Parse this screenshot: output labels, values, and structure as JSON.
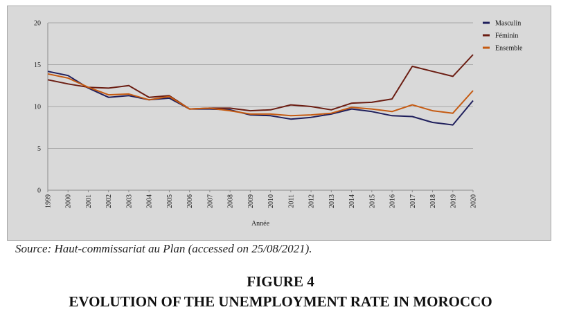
{
  "chart_data": {
    "type": "line",
    "xlabel": "Année",
    "ylabel": "",
    "ylim": [
      0,
      20
    ],
    "yticks": [
      0,
      5,
      10,
      15,
      20
    ],
    "grid": true,
    "legend_position": "top-right",
    "categories": [
      "1999",
      "2000",
      "2001",
      "2002",
      "2003",
      "2004",
      "2005",
      "2006",
      "2007",
      "2008",
      "2009",
      "2010",
      "2011",
      "2012",
      "2013",
      "2014",
      "2015",
      "2016",
      "2017",
      "2018",
      "2019",
      "2020"
    ],
    "series": [
      {
        "name": "Masculin",
        "color": "#1f1f5c",
        "values": [
          14.2,
          13.7,
          12.2,
          11.1,
          11.3,
          10.8,
          11.0,
          9.7,
          9.7,
          9.6,
          9.0,
          8.9,
          8.5,
          8.7,
          9.1,
          9.7,
          9.4,
          8.9,
          8.8,
          8.1,
          7.8,
          10.7
        ]
      },
      {
        "name": "Féminin",
        "color": "#6b1d12",
        "values": [
          13.2,
          12.7,
          12.3,
          12.2,
          12.5,
          11.1,
          11.3,
          9.7,
          9.8,
          9.8,
          9.5,
          9.6,
          10.2,
          10.0,
          9.6,
          10.4,
          10.5,
          10.9,
          14.8,
          14.2,
          13.6,
          16.2
        ]
      },
      {
        "name": "Ensemble",
        "color": "#c55a11",
        "values": [
          13.9,
          13.4,
          12.3,
          11.4,
          11.5,
          10.8,
          11.2,
          9.7,
          9.8,
          9.5,
          9.1,
          9.1,
          8.9,
          9.0,
          9.2,
          9.9,
          9.7,
          9.4,
          10.2,
          9.5,
          9.2,
          11.9
        ]
      }
    ]
  },
  "caption": {
    "source": "Source: Haut-commissariat au Plan (accessed on 25/08/2021).",
    "figure_number": "FIGURE 4",
    "figure_title": "EVOLUTION OF THE UNEMPLOYMENT RATE IN MOROCCO"
  }
}
